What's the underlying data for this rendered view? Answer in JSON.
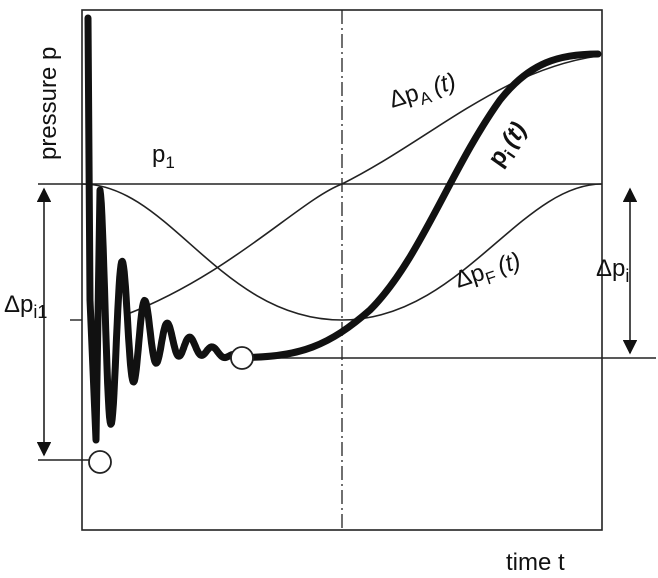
{
  "labels": {
    "y_axis": "pressure  p",
    "x_axis": "time  t",
    "p1": "p",
    "p1_sub": "1",
    "dpA_delta": "Δp",
    "dpA_sub": "A",
    "dpA_t": "(t)",
    "pi_base": "p",
    "pi_sub": "i",
    "pi_t": "(t)",
    "dpF_delta": "Δp",
    "dpF_sub": "F",
    "dpF_t": "(t)",
    "dpi_delta": "Δp",
    "dpi_sub": "i",
    "dpi1_delta": "Δp",
    "dpi1_sub": "i1"
  }
}
